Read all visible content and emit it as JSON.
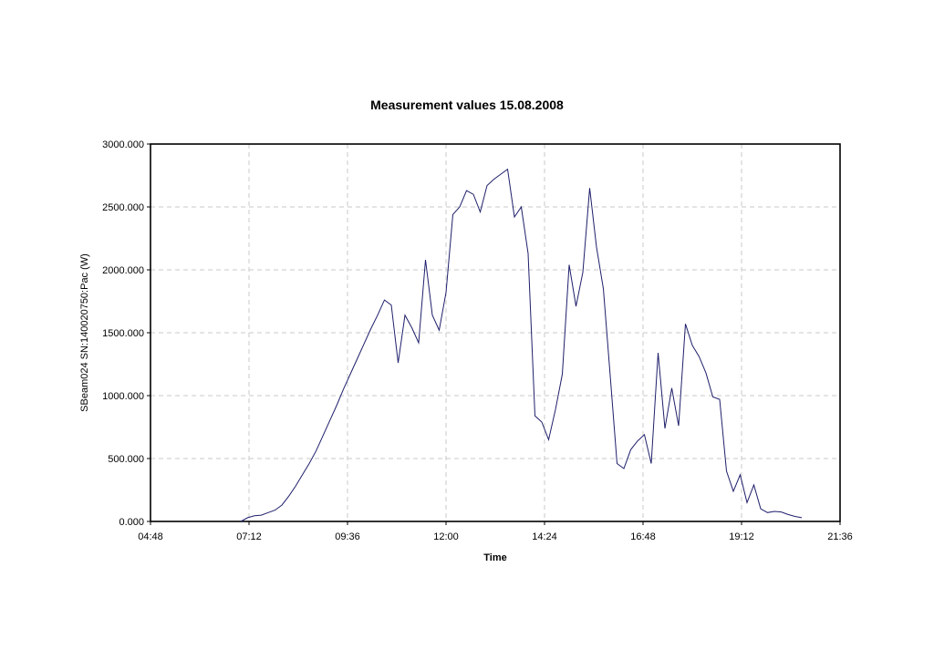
{
  "chart_data": {
    "type": "line",
    "title": "Measurement values 15.08.2008",
    "xlabel": "Time",
    "ylabel": "SBeam024 SN:140020750:Pac (W)",
    "xlim": [
      "04:48",
      "21:36"
    ],
    "ylim": [
      0,
      3000
    ],
    "x_ticks": [
      "04:48",
      "07:12",
      "09:36",
      "12:00",
      "14:24",
      "16:48",
      "19:12",
      "21:36"
    ],
    "y_ticks": [
      "0.000",
      "500.000",
      "1000.000",
      "1500.000",
      "2000.000",
      "2500.000",
      "3000.000"
    ],
    "grid": true,
    "legend": "none",
    "line_color": "#1f1f6b",
    "series": [
      {
        "x": [
          "07:00",
          "07:10",
          "07:20",
          "07:30",
          "07:40",
          "07:50",
          "08:00",
          "08:10",
          "08:20",
          "08:30",
          "08:40",
          "08:50",
          "09:00",
          "09:10",
          "09:20",
          "09:30",
          "09:40",
          "09:50",
          "10:00",
          "10:10",
          "10:20",
          "10:30",
          "10:40",
          "10:50",
          "11:00",
          "11:10",
          "11:20",
          "11:30",
          "11:40",
          "11:50",
          "12:00",
          "12:10",
          "12:20",
          "12:30",
          "12:40",
          "12:50",
          "13:00",
          "13:10",
          "13:20",
          "13:30",
          "13:40",
          "13:50",
          "14:00",
          "14:10",
          "14:20",
          "14:30",
          "14:40",
          "14:50",
          "15:00",
          "15:10",
          "15:20",
          "15:30",
          "15:40",
          "15:50",
          "16:00",
          "16:10",
          "16:20",
          "16:30",
          "16:40",
          "16:50",
          "17:00",
          "17:10",
          "17:20",
          "17:30",
          "17:40",
          "17:50",
          "18:00",
          "18:10",
          "18:20",
          "18:30",
          "18:40",
          "18:50",
          "19:00",
          "19:10",
          "19:20",
          "19:30",
          "19:40",
          "19:50",
          "20:00",
          "20:10",
          "20:20",
          "20:30",
          "20:40"
        ],
        "y": [
          0,
          30,
          45,
          50,
          70,
          90,
          130,
          200,
          280,
          370,
          460,
          560,
          680,
          800,
          920,
          1050,
          1170,
          1290,
          1410,
          1530,
          1640,
          1760,
          1720,
          1260,
          1640,
          1540,
          1420,
          2080,
          1640,
          1520,
          1820,
          2440,
          2500,
          2630,
          2600,
          2460,
          2670,
          2720,
          2760,
          2800,
          2420,
          2500,
          2130,
          840,
          790,
          650,
          890,
          1170,
          2040,
          1710,
          1980,
          2650,
          2180,
          1850,
          1160,
          460,
          420,
          570,
          640,
          690,
          460,
          1340,
          740,
          1060,
          760,
          1570,
          1400,
          1310,
          1180,
          990,
          970,
          400,
          240,
          370,
          150,
          290,
          100,
          70,
          80,
          75,
          55,
          40,
          30
        ]
      }
    ]
  }
}
